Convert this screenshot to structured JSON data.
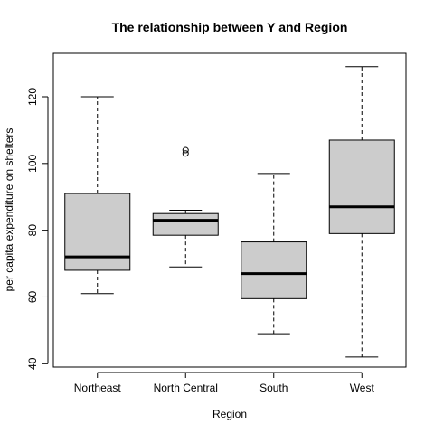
{
  "chart_data": {
    "type": "boxplot",
    "title": "The relationship between Y and Region",
    "xlabel": "Region",
    "ylabel": "per capita expenditure on shelters",
    "ylim": [
      39,
      133
    ],
    "yticks": [
      40,
      60,
      80,
      100,
      120
    ],
    "grid": false,
    "categories": [
      "Northeast",
      "North Central",
      "South",
      "West"
    ],
    "boxes": [
      {
        "category": "Northeast",
        "min": 61,
        "q1": 68,
        "median": 72,
        "q3": 91,
        "max": 120,
        "outliers": []
      },
      {
        "category": "North Central",
        "min": 69,
        "q1": 78.5,
        "median": 83,
        "q3": 85,
        "max": 86,
        "outliers": [
          103,
          104
        ]
      },
      {
        "category": "South",
        "min": 49,
        "q1": 59.5,
        "median": 67,
        "q3": 76.5,
        "max": 97,
        "outliers": []
      },
      {
        "category": "West",
        "min": 42,
        "q1": 79,
        "median": 87,
        "q3": 107,
        "max": 129,
        "outliers": []
      }
    ],
    "box_fill": "#cccccc",
    "line_color": "#000000"
  }
}
